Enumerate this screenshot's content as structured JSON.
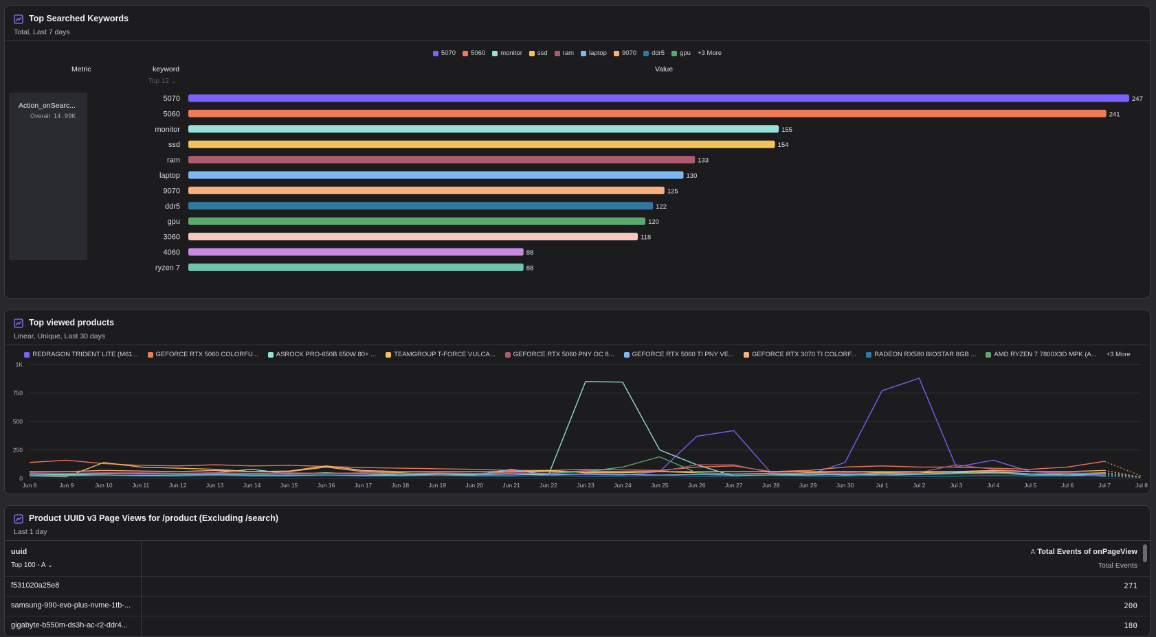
{
  "panel1": {
    "title": "Top Searched Keywords",
    "subtitle": "Total, Last 7 days",
    "col_metric": "Metric",
    "col_keyword": "keyword",
    "col_value": "Value",
    "top_selector": "Top 12",
    "metric_name": "Action_onSearc...",
    "metric_overall_label": "Overall",
    "metric_overall_value": "14.99K",
    "legend_more": "+3 More"
  },
  "panel2": {
    "title": "Top viewed products",
    "subtitle": "Linear, Unique, Last 30 days",
    "legend_more": "+3 More"
  },
  "panel3": {
    "title": "Product UUID v3 Page Views for /product (Excluding /search)",
    "subtitle": "Last 1 day",
    "col_uuid": "uuid",
    "uuid_selector": "Top 100 - A",
    "col_total_prefix": "A",
    "col_total": "Total Events of onPageView",
    "col_total_sub": "Total Events",
    "rows": [
      {
        "uuid": "f531020a25e8",
        "total": "271"
      },
      {
        "uuid": "samsung-990-evo-plus-nvme-1tb-...",
        "total": "200"
      },
      {
        "uuid": "gigabyte-b550m-ds3h-ac-r2-ddr4...",
        "total": "180"
      }
    ]
  },
  "chart_data": [
    {
      "type": "bar",
      "title": "Top Searched Keywords",
      "categories": [
        "5070",
        "5060",
        "monitor",
        "ssd",
        "ram",
        "laptop",
        "9070",
        "ddr5",
        "gpu",
        "3060",
        "4060",
        "ryzen 7"
      ],
      "values": [
        247,
        241,
        155,
        154,
        133,
        130,
        125,
        122,
        120,
        118,
        88,
        88
      ],
      "colors": [
        "#7b61ff",
        "#f07a5a",
        "#96e2d8",
        "#f2c35a",
        "#b05a6e",
        "#7db8f2",
        "#f7b07e",
        "#2f7a9e",
        "#5ba870",
        "#f8c8c0",
        "#c88ae0",
        "#6ec4b0"
      ],
      "legend": [
        "5070",
        "5060",
        "monitor",
        "ssd",
        "ram",
        "laptop",
        "9070",
        "ddr5",
        "gpu"
      ],
      "legend_placement": "top-center"
    },
    {
      "type": "line",
      "title": "Top viewed products",
      "x": [
        "Jun 8",
        "Jun 9",
        "Jun 10",
        "Jun 11",
        "Jun 12",
        "Jun 13",
        "Jun 14",
        "Jun 15",
        "Jun 16",
        "Jun 17",
        "Jun 18",
        "Jun 19",
        "Jun 20",
        "Jun 21",
        "Jun 22",
        "Jun 23",
        "Jun 24",
        "Jun 25",
        "Jun 26",
        "Jun 27",
        "Jun 28",
        "Jun 29",
        "Jun 30",
        "Jul 1",
        "Jul 2",
        "Jul 3",
        "Jul 4",
        "Jul 5",
        "Jul 6",
        "Jul 7",
        "Jul 8"
      ],
      "yticks": [
        "0",
        "250",
        "500",
        "750",
        "1K"
      ],
      "ylim": [
        0,
        1000
      ],
      "grid": true,
      "legend_placement": "top-center",
      "series": [
        {
          "name": "REDRAGON TRIDENT LITE (M61...",
          "color": "#7b61ff",
          "values": [
            30,
            28,
            25,
            30,
            28,
            30,
            25,
            30,
            28,
            30,
            25,
            30,
            28,
            30,
            40,
            35,
            30,
            60,
            370,
            420,
            50,
            30,
            140,
            770,
            880,
            100,
            160,
            60,
            40,
            30,
            10
          ]
        },
        {
          "name": "GEFORCE RTX 5060 COLORFU...",
          "color": "#f07a5a",
          "values": [
            140,
            160,
            130,
            115,
            110,
            120,
            110,
            115,
            105,
            95,
            90,
            85,
            80,
            70,
            70,
            80,
            75,
            70,
            100,
            110,
            60,
            70,
            100,
            110,
            100,
            100,
            90,
            80,
            100,
            150,
            20
          ]
        },
        {
          "name": "ASROCK PRO-650B 650W 80+ ...",
          "color": "#96e2d8",
          "values": [
            40,
            35,
            40,
            45,
            40,
            50,
            80,
            40,
            50,
            40,
            30,
            40,
            35,
            40,
            30,
            850,
            845,
            250,
            120,
            20,
            30,
            40,
            30,
            40,
            40,
            50,
            60,
            40,
            30,
            20,
            10
          ]
        },
        {
          "name": "TEAMGROUP T-FORCE VULCA...",
          "color": "#f2c35a",
          "values": [
            20,
            15,
            140,
            100,
            90,
            80,
            60,
            60,
            100,
            60,
            50,
            40,
            40,
            60,
            70,
            50,
            50,
            60,
            50,
            40,
            40,
            50,
            60,
            50,
            50,
            60,
            50,
            40,
            40,
            50,
            10
          ]
        },
        {
          "name": "GEFORCE RTX 5060 PNY OC 8...",
          "color": "#b05a6e",
          "values": [
            50,
            45,
            50,
            50,
            45,
            50,
            45,
            50,
            45,
            50,
            45,
            50,
            45,
            50,
            45,
            70,
            60,
            60,
            120,
            120,
            50,
            45,
            50,
            60,
            50,
            120,
            80,
            60,
            50,
            40,
            10
          ]
        },
        {
          "name": "GEFORCE RTX 5060 TI PNY VE...",
          "color": "#7db8f2",
          "values": [
            30,
            28,
            30,
            25,
            30,
            35,
            30,
            28,
            30,
            25,
            30,
            28,
            30,
            80,
            30,
            40,
            35,
            30,
            35,
            30,
            28,
            30,
            35,
            30,
            35,
            40,
            50,
            30,
            30,
            40,
            10
          ]
        },
        {
          "name": "GEFORCE RTX 3070 TI COLORF...",
          "color": "#f7b07e",
          "values": [
            60,
            60,
            70,
            65,
            60,
            70,
            60,
            65,
            110,
            70,
            60,
            60,
            60,
            60,
            60,
            60,
            60,
            60,
            60,
            60,
            60,
            60,
            60,
            60,
            60,
            60,
            70,
            60,
            60,
            70,
            10
          ]
        },
        {
          "name": "RADEON RX580 BIOSTAR 8GB ...",
          "color": "#2f7a9e",
          "values": [
            20,
            20,
            25,
            20,
            20,
            25,
            20,
            20,
            25,
            20,
            20,
            25,
            20,
            20,
            25,
            20,
            20,
            25,
            20,
            20,
            25,
            20,
            20,
            25,
            20,
            20,
            25,
            20,
            20,
            25,
            5
          ]
        },
        {
          "name": "AMD RYZEN 7 7800X3D MPK (A...",
          "color": "#5ba870",
          "values": [
            40,
            40,
            45,
            40,
            40,
            45,
            40,
            40,
            45,
            40,
            40,
            45,
            40,
            40,
            45,
            60,
            100,
            190,
            50,
            40,
            45,
            40,
            40,
            45,
            40,
            40,
            45,
            40,
            40,
            45,
            10
          ]
        }
      ]
    }
  ]
}
